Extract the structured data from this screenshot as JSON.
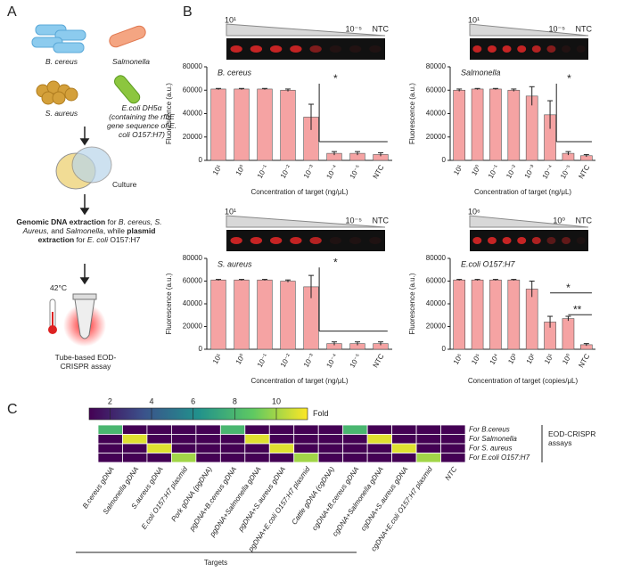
{
  "panel_labels": [
    "A",
    "B",
    "C"
  ],
  "panel_a": {
    "organisms": [
      "B. cereus",
      "Salmonella",
      "S. aureus"
    ],
    "ecoli": [
      "E.coli DH5α",
      "(containing the rfbE gene sequence of E. coli O157:H7)"
    ],
    "culture": "Culture",
    "extraction": [
      "Genomic DNA extraction",
      " for ",
      "B. cereus, S. Aureus,",
      " and ",
      "Salmonella",
      ", while ",
      "plasmid extraction",
      " for ",
      "E. coli",
      " O157:H7"
    ],
    "temperature": "42°C",
    "assay": "Tube-based EOD-CRISPR assay"
  },
  "chart_data": [
    {
      "type": "bar",
      "title": "B. cereus",
      "gel_labels": [
        "10¹",
        "10⁻⁵",
        "NTC"
      ],
      "categories": [
        "10¹",
        "10⁰",
        "10⁻¹",
        "10⁻²",
        "10⁻³",
        "10⁻⁴",
        "10⁻⁵",
        "NTC"
      ],
      "values": [
        61000,
        61000,
        61000,
        60000,
        37000,
        6000,
        6000,
        5000
      ],
      "errors": [
        500,
        500,
        500,
        1000,
        11000,
        1500,
        1500,
        1500
      ],
      "color": "#f5a3a3",
      "ylim": [
        0,
        80000
      ],
      "yticks": [
        0,
        20000,
        40000,
        60000,
        80000
      ],
      "ylabel": "Fluorescence (a.u.)",
      "xlabel": "Concentration of target (ng/μL)",
      "significance": [
        "*"
      ]
    },
    {
      "type": "bar",
      "title": "Salmonella",
      "gel_labels": [
        "10¹",
        "10⁻⁵",
        "NTC"
      ],
      "categories": [
        "10¹",
        "10⁰",
        "10⁻¹",
        "10⁻²",
        "10⁻³",
        "10⁻⁴",
        "10⁻⁵",
        "NTC"
      ],
      "values": [
        60000,
        61000,
        61000,
        60000,
        55000,
        39000,
        6000,
        4000
      ],
      "errors": [
        1000,
        500,
        500,
        1000,
        8000,
        12000,
        1500,
        1000
      ],
      "color": "#f5a3a3",
      "ylim": [
        0,
        80000
      ],
      "yticks": [
        0,
        20000,
        40000,
        60000,
        80000
      ],
      "ylabel": "Fluorescence (a.u.)",
      "xlabel": "Concentration of target (ng/μL)",
      "significance": [
        "*"
      ]
    },
    {
      "type": "bar",
      "title": "S. aureus",
      "gel_labels": [
        "10¹",
        "10⁻⁵",
        "NTC"
      ],
      "categories": [
        "10¹",
        "10⁰",
        "10⁻¹",
        "10⁻²",
        "10⁻³",
        "10⁻⁴",
        "10⁻⁵",
        "NTC"
      ],
      "values": [
        61000,
        61000,
        61000,
        60000,
        55000,
        5000,
        5000,
        5000
      ],
      "errors": [
        500,
        500,
        500,
        1000,
        10000,
        1500,
        1500,
        1500
      ],
      "color": "#f5a3a3",
      "ylim": [
        0,
        80000
      ],
      "yticks": [
        0,
        20000,
        40000,
        60000,
        80000
      ],
      "ylabel": "Fluorescence (a.u.)",
      "xlabel": "Concentration of target (ng/μL)",
      "significance": [
        "*"
      ]
    },
    {
      "type": "bar",
      "title": "E.coli O157:H7",
      "gel_labels": [
        "10⁶",
        "10⁰",
        "NTC"
      ],
      "categories": [
        "10⁶",
        "10⁵",
        "10⁴",
        "10³",
        "10²",
        "10¹",
        "10⁰",
        "NTC"
      ],
      "values": [
        61000,
        61000,
        61000,
        61000,
        53000,
        24000,
        27000,
        4000
      ],
      "errors": [
        500,
        500,
        500,
        500,
        7000,
        5000,
        2000,
        1000
      ],
      "color": "#f5a3a3",
      "ylim": [
        0,
        80000
      ],
      "yticks": [
        0,
        20000,
        40000,
        60000,
        80000
      ],
      "ylabel": "Fluorescence (a.u.)",
      "xlabel": "Concentration of target (copies/μL)",
      "significance": [
        "*",
        "**"
      ]
    },
    {
      "type": "heatmap",
      "colorbar_label": "Fold",
      "zlim": [
        1,
        11.5
      ],
      "zticks": [
        2,
        4,
        6,
        8,
        10
      ],
      "rows": [
        "For B.cereus",
        "For Salmonella",
        "For S. aureus",
        "For E.coli O157:H7"
      ],
      "columns": [
        "B.cereus gDNA",
        "Salmonella gDNA",
        "S.aureus gDNA",
        "E.coli O157:H7 plasmid",
        "Pork gDNA (pgDNA)",
        "pgDNA+B.cereus gDNA",
        "pgDNA+Salmonella gDNA",
        "pgDNA+S.aureus gDNA",
        "pgDNA+E.coli O157:H7 plasmid",
        "Cattle gDNA (cgDNA)",
        "cgDNA+B.cereus gDNA",
        "cgDNA+Salmonella gDNA",
        "cgDNA+S.aureus gDNA",
        "cgDNA+E.coli O157:H7 plasmid",
        "NTC"
      ],
      "values": [
        [
          8,
          1,
          1,
          1,
          1,
          8,
          1,
          1,
          1,
          1,
          8,
          1,
          1,
          1,
          1
        ],
        [
          1,
          11,
          1,
          1,
          1,
          1,
          11,
          1,
          1,
          1,
          1,
          11,
          1,
          1,
          1
        ],
        [
          1,
          1,
          11,
          1,
          1,
          1,
          1,
          11,
          1,
          1,
          1,
          1,
          11,
          1,
          1
        ],
        [
          1,
          1,
          1,
          10,
          1,
          1,
          1,
          1,
          10,
          1,
          1,
          1,
          1,
          10,
          1
        ]
      ],
      "xlabel": "Targets",
      "side_label": "EOD-CRISPR assays"
    }
  ]
}
